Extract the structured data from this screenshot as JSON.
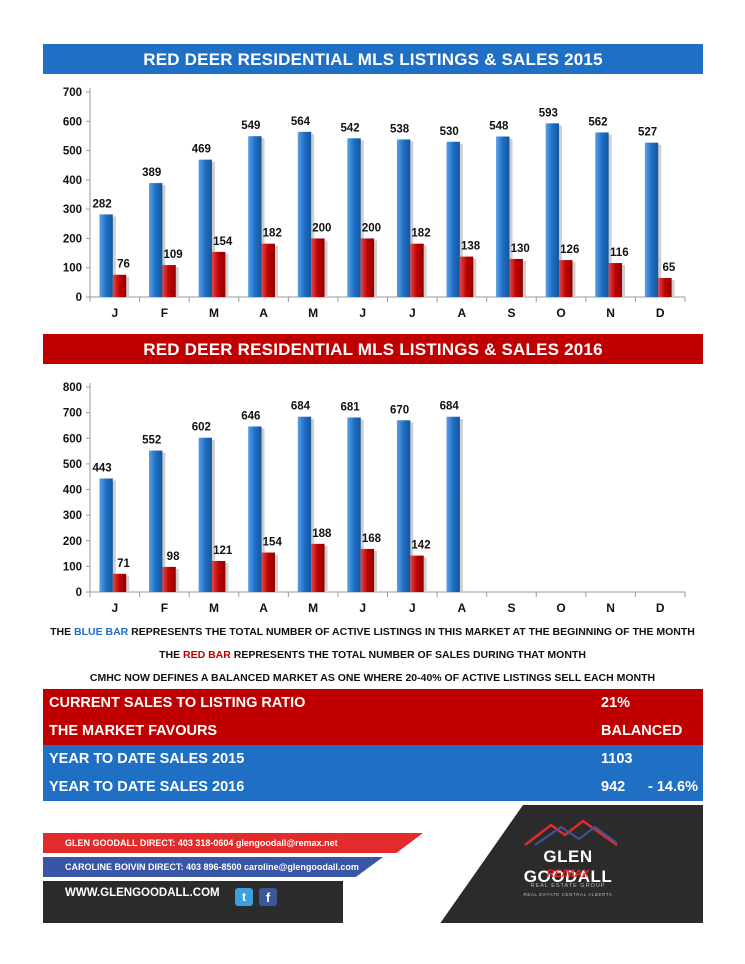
{
  "chart_data": [
    {
      "type": "bar",
      "title": "RED DEER RESIDENTIAL MLS LISTINGS & SALES 2015",
      "categories": [
        "J",
        "F",
        "M",
        "A",
        "M",
        "J",
        "J",
        "A",
        "S",
        "O",
        "N",
        "D"
      ],
      "series": [
        {
          "values": [
            282,
            389,
            469,
            549,
            564,
            542,
            538,
            530,
            548,
            593,
            562,
            527
          ],
          "color": "#1f6fc5"
        },
        {
          "values": [
            76,
            109,
            154,
            182,
            200,
            200,
            182,
            138,
            130,
            126,
            116,
            65
          ],
          "color": "#c00000"
        }
      ],
      "ylim": [
        0,
        700
      ],
      "yticks": [
        0,
        100,
        200,
        300,
        400,
        500,
        600,
        700
      ]
    },
    {
      "type": "bar",
      "title": "RED DEER RESIDENTIAL MLS LISTINGS & SALES 2016",
      "categories": [
        "J",
        "F",
        "M",
        "A",
        "M",
        "J",
        "J",
        "A",
        "S",
        "O",
        "N",
        "D"
      ],
      "series": [
        {
          "values": [
            443,
            552,
            602,
            646,
            684,
            681,
            670,
            684,
            null,
            null,
            null,
            null
          ],
          "color": "#1f6fc5"
        },
        {
          "values": [
            71,
            98,
            121,
            154,
            188,
            168,
            142,
            null,
            null,
            null,
            null,
            null
          ],
          "color": "#c00000"
        }
      ],
      "ylim": [
        0,
        800
      ],
      "yticks": [
        0,
        100,
        200,
        300,
        400,
        500,
        600,
        700,
        800
      ]
    }
  ],
  "legend": {
    "line1": {
      "pre": "THE ",
      "word": "BLUE BAR",
      "post": " REPRESENTS THE TOTAL NUMBER OF ACTIVE LISTINGS IN THIS MARKET AT THE BEGINNING OF THE MONTH"
    },
    "line2": {
      "pre": "THE ",
      "word": "RED BAR",
      "post": " REPRESENTS THE TOTAL NUMBER OF SALES DURING THAT MONTH"
    },
    "line3": "CMHC NOW DEFINES A BALANCED MARKET AS ONE WHERE 20-40% OF ACTIVE LISTINGS SELL EACH MONTH"
  },
  "stats": {
    "ratio": {
      "label": "CURRENT SALES TO LISTING RATIO",
      "value": "21%"
    },
    "favours": {
      "label": "THE MARKET FAVOURS",
      "value": "BALANCED"
    },
    "ytd2015": {
      "label": "YEAR TO DATE SALES 2015",
      "value": "1103"
    },
    "ytd2016": {
      "label": "YEAR TO DATE SALES 2016",
      "value": "942",
      "change": "- 14.6%"
    }
  },
  "footer": {
    "contact1": "GLEN GOODALL  DIRECT: 403 318-0604  glengoodall@remax.net",
    "contact2": "CAROLINE BOIVIN DIRECT: 403 896-8500 caroline@glengoodall.com",
    "website": "WWW.GLENGOODALL.COM",
    "brand": "GLEN GOODALL",
    "brand_sub1": "RE/MAX",
    "brand_sub2": "REAL ESTATE GROUP",
    "brand_sub3": "REAL ESTATE CENTRAL ALBERTA",
    "twitter_icon": "t",
    "facebook_icon": "f"
  }
}
